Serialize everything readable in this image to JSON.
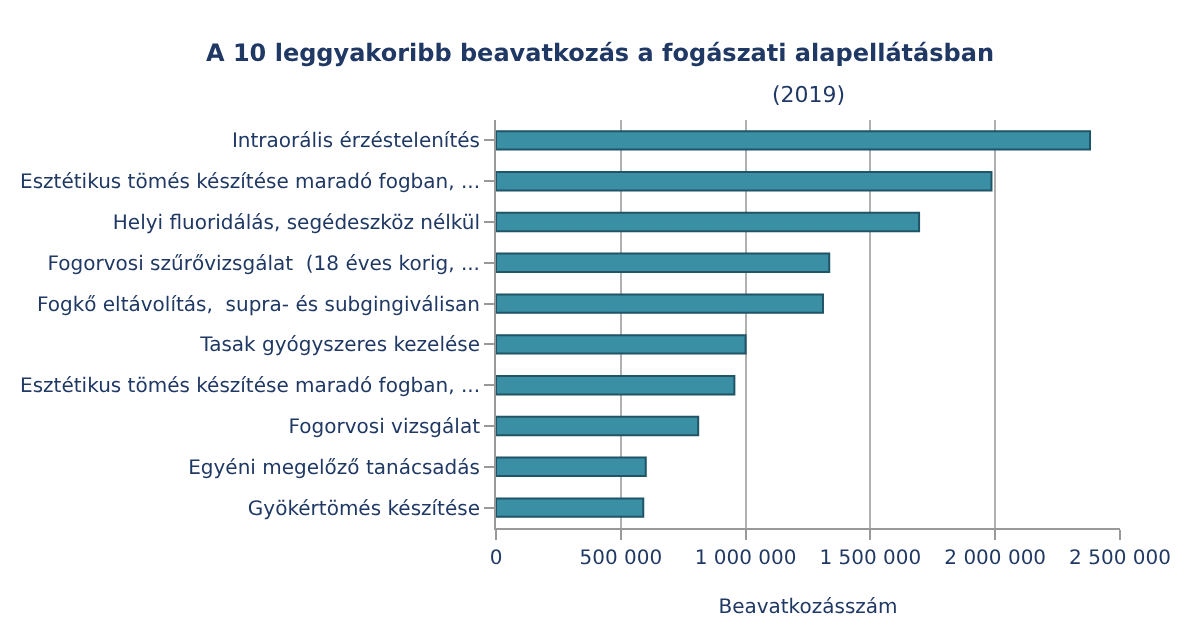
{
  "chart_data": {
    "type": "bar",
    "orientation": "horizontal",
    "title": "A 10 leggyakoribb beavatkozás a fogászati alapellátásban",
    "subtitle": "(2019)",
    "xlabel": "Beavatkozásszám",
    "categories": [
      "Intraorális érzéstelenítés",
      "Esztétikus tömés készítése maradó fogban, ...",
      "Helyi fluoridálás, segédeszköz nélkül",
      "Fogorvosi szűrővizsgálat  (18 éves korig, ...",
      "Fogkő eltávolítás,  supra- és subgingiválisan",
      "Tasak gyógyszeres kezelése",
      "Esztétikus tömés készítése maradó fogban, ...",
      "Fogorvosi vizsgálat",
      "Egyéni megelőző tanácsadás",
      "Gyökértömés készítése"
    ],
    "values": [
      2380000,
      1985000,
      1695000,
      1335000,
      1310000,
      1000000,
      955000,
      810000,
      600000,
      590000
    ],
    "color": "#3a8fa5",
    "xlim": [
      0,
      2500000
    ],
    "xticks": [
      0,
      {
        "value": 500000,
        "label": "500 000"
      },
      {
        "value": 1000000,
        "label": "1 000 000"
      },
      {
        "value": 1500000,
        "label": "1 500 000"
      },
      {
        "value": 2000000,
        "label": "2 000 000"
      },
      {
        "value": 2500000,
        "label": "2 500 000"
      }
    ],
    "grid": "x",
    "legend": false
  }
}
